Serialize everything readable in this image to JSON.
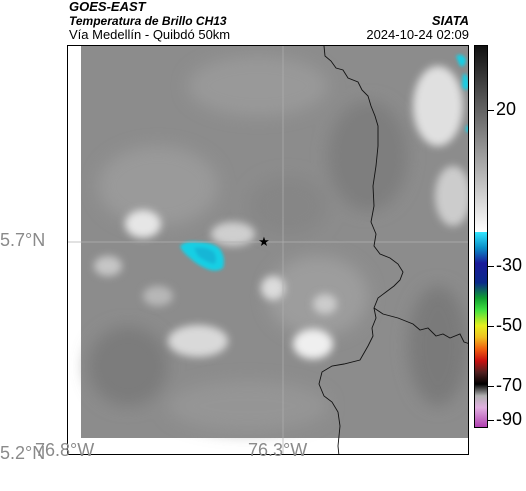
{
  "header": {
    "satellite": "GOES-EAST",
    "product": "Temperatura de Brillo CH13",
    "region": "Vía Medellín - Quibdó 50km",
    "agency": "SIATA",
    "datetime": "2024-10-24 02:09"
  },
  "map": {
    "lat_labels": [
      "5.7°N",
      "5.2°N"
    ],
    "lon_labels": [
      "76.8°W",
      "76.3°W"
    ],
    "marker": "star-icon",
    "colors": {
      "background_gray": "#8c8c8c",
      "cloud_cyan": "#1ad4e6",
      "border_line": "#000000",
      "grid": "#b0b0b0"
    }
  },
  "colorbar": {
    "ticks": [
      "20",
      "-30",
      "-50",
      "-70",
      "-90"
    ]
  }
}
